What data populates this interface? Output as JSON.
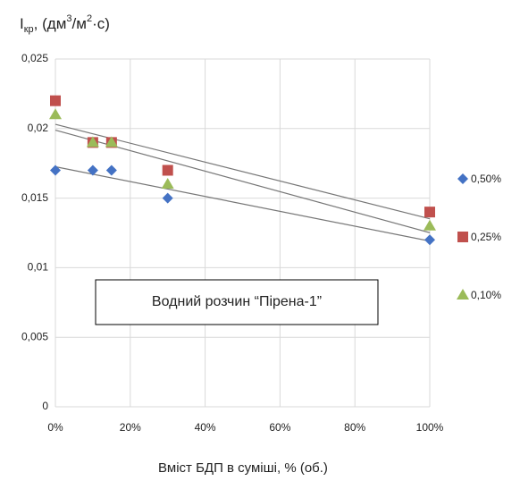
{
  "chart_data": {
    "type": "scatter",
    "y_label_parts": [
      "I",
      "кр",
      ", (дм",
      "3",
      "/м",
      "2",
      "·с)"
    ],
    "x_label": "Вміст БДП в суміші, % (об.)",
    "annotation": "Водний розчин “Пірена-1”",
    "x": [
      0,
      10,
      15,
      30,
      100
    ],
    "series": [
      {
        "name": "0,50%",
        "color": "#4472c4",
        "marker": "diamond",
        "values": [
          0.017,
          0.017,
          0.017,
          0.015,
          0.012
        ]
      },
      {
        "name": "0,25%",
        "color": "#c0504d",
        "marker": "square",
        "values": [
          0.022,
          0.019,
          0.019,
          0.017,
          0.014
        ]
      },
      {
        "name": "0,10%",
        "color": "#9bbb59",
        "marker": "triangle",
        "values": [
          0.021,
          0.019,
          0.019,
          0.016,
          0.013
        ]
      }
    ],
    "trendline": "linear",
    "xlim": [
      0,
      100
    ],
    "xticks": [
      {
        "value": 0,
        "label": "0%"
      },
      {
        "value": 20,
        "label": "20%"
      },
      {
        "value": 40,
        "label": "40%"
      },
      {
        "value": 60,
        "label": "60%"
      },
      {
        "value": 80,
        "label": "80%"
      },
      {
        "value": 100,
        "label": "100%"
      }
    ],
    "ylim": [
      0,
      0.025
    ],
    "yticks": [
      0,
      {
        "value": 0.005,
        "label": "0,005"
      },
      {
        "value": 0.01,
        "label": "0,01"
      },
      {
        "value": 0.015,
        "label": "0,015"
      },
      {
        "value": 0.02,
        "label": "0,02"
      },
      {
        "value": 0.025,
        "label": "0,025"
      }
    ],
    "grid": true,
    "legend": "right"
  }
}
